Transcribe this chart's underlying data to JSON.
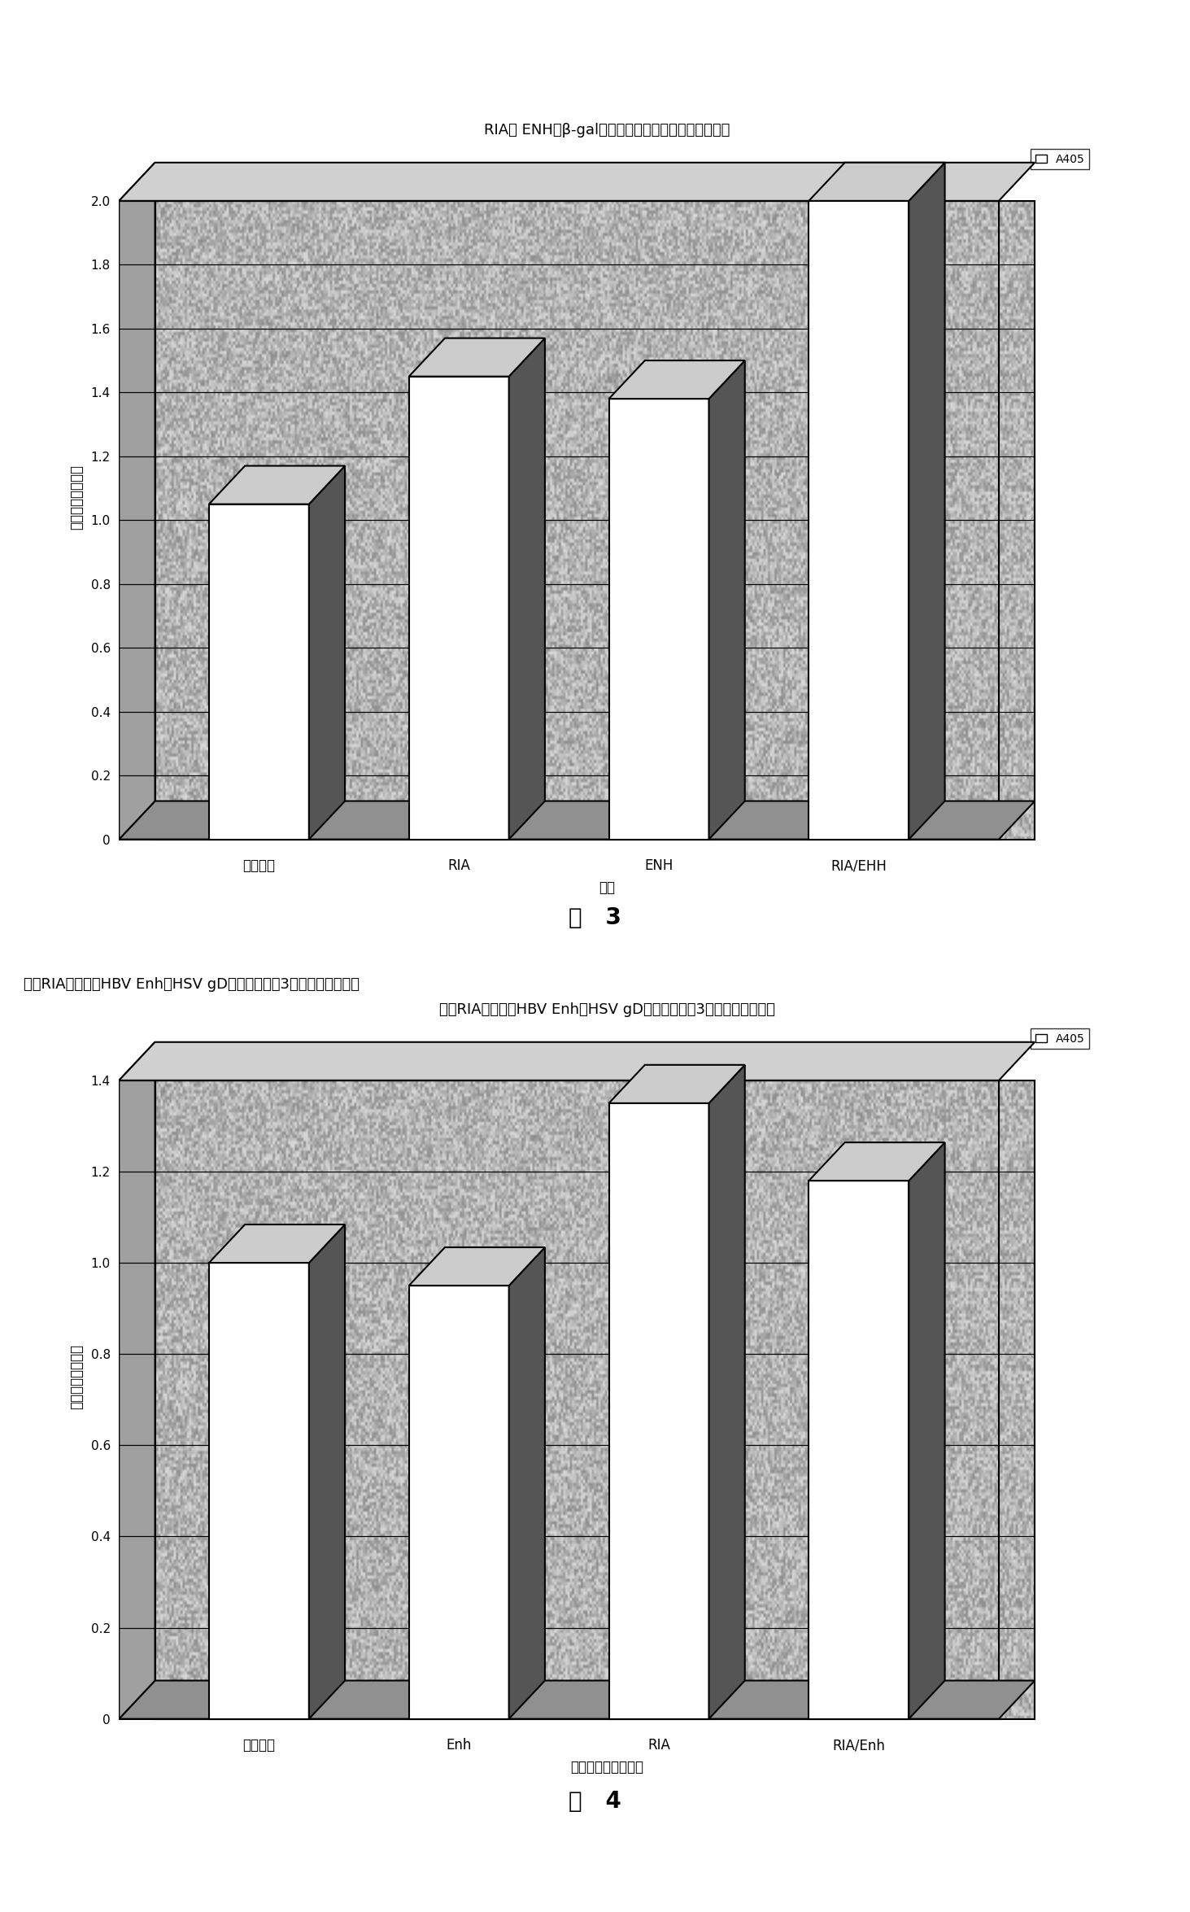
{
  "chart1": {
    "title": "RIA， ENH对β-gal表达的影响（三次实验的平均値）",
    "categories": [
      "基本载体",
      "RIA",
      "ENH",
      "RIA/EHH"
    ],
    "values": [
      1.05,
      1.45,
      1.38,
      2.0
    ],
    "ylabel": "与基本载体的比率",
    "xlabel": "载体",
    "ylim": [
      0,
      2.0
    ],
    "yticks": [
      0,
      0.2,
      0.4,
      0.6,
      0.8,
      1.0,
      1.2,
      1.4,
      1.6,
      1.8,
      2.0
    ],
    "legend_label": "A405",
    "fig_label": "图   3"
  },
  "chart2": {
    "title": "加入RIA内含子和HBV Enh对HSV gD表达的影响（3次实验的平均値）",
    "categories": [
      "基本载体",
      "Enh",
      "RIA",
      "RIA/Enh"
    ],
    "values": [
      1.0,
      0.95,
      1.35,
      1.18
    ],
    "ylabel": "与基本载体的比率",
    "xlabel": "导入基本载体的元件",
    "ylim": [
      0,
      1.4
    ],
    "yticks": [
      0,
      0.2,
      0.4,
      0.6,
      0.8,
      1.0,
      1.2,
      1.4
    ],
    "legend_label": "A405",
    "fig_label": "图   4"
  },
  "bar_white": "#ffffff",
  "bar_side_color": "#888888",
  "bar_top_color": "#cccccc",
  "bar_edge_color": "#000000",
  "bg_texture_color": "#b0b0b0",
  "bar_width": 0.5
}
